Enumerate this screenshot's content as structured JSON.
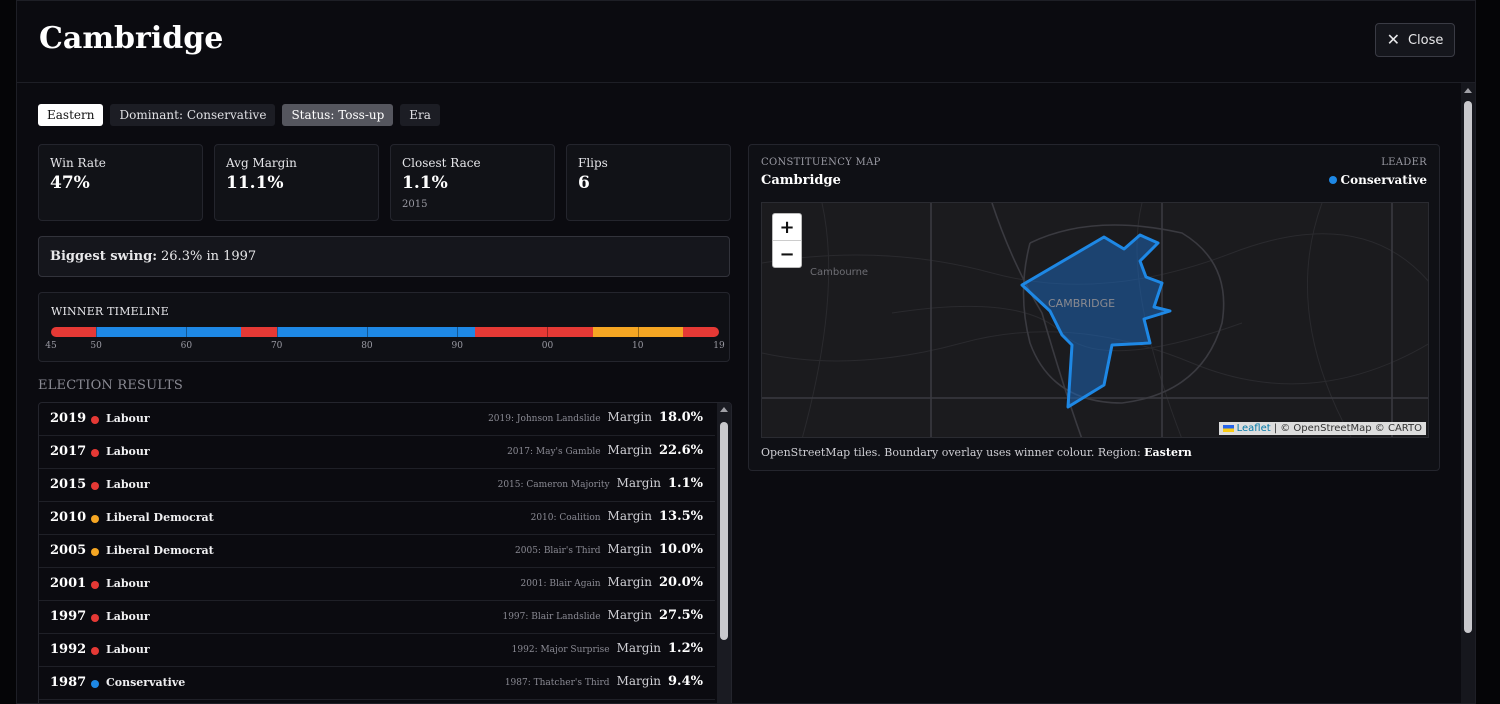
{
  "title": "Cambridge",
  "close_label": "Close",
  "badges": [
    "Eastern",
    "Dominant: Conservative",
    "Status: Toss-up",
    "Era"
  ],
  "stats": [
    {
      "label": "Win Rate",
      "value": "47%",
      "sub": ""
    },
    {
      "label": "Avg Margin",
      "value": "11.1%",
      "sub": ""
    },
    {
      "label": "Closest Race",
      "value": "1.1%",
      "sub": "2015"
    },
    {
      "label": "Flips",
      "value": "6",
      "sub": ""
    }
  ],
  "swing": {
    "label": "Biggest swing:",
    "text": "26.3% in 1997"
  },
  "timeline": {
    "label": "WINNER TIMELINE",
    "ticks": [
      "45",
      "50",
      "60",
      "70",
      "80",
      "90",
      "00",
      "10",
      "19"
    ],
    "segments": [
      {
        "from": 1945,
        "to": 1950,
        "party": "Labour"
      },
      {
        "from": 1950,
        "to": 1966,
        "party": "Conservative"
      },
      {
        "from": 1966,
        "to": 1970,
        "party": "Labour"
      },
      {
        "from": 1970,
        "to": 1992,
        "party": "Conservative"
      },
      {
        "from": 1992,
        "to": 2005,
        "party": "Labour"
      },
      {
        "from": 2005,
        "to": 2015,
        "party": "Liberal Democrat"
      },
      {
        "from": 2015,
        "to": 2019,
        "party": "Labour"
      }
    ]
  },
  "party_colors": {
    "Labour": "#e53935",
    "Conservative": "#1e88e5",
    "Liberal Democrat": "#f5a623"
  },
  "results_title": "ELECTION RESULTS",
  "margin_label": "Margin",
  "results": [
    {
      "year": "2019",
      "party": "Labour",
      "era": "2019: Johnson Landslide",
      "margin": "18.0%",
      "color": "#e53935"
    },
    {
      "year": "2017",
      "party": "Labour",
      "era": "2017: May's Gamble",
      "margin": "22.6%",
      "color": "#e53935"
    },
    {
      "year": "2015",
      "party": "Labour",
      "era": "2015: Cameron Majority",
      "margin": "1.1%",
      "color": "#e53935"
    },
    {
      "year": "2010",
      "party": "Liberal Democrat",
      "era": "2010: Coalition",
      "margin": "13.5%",
      "color": "#f5a623"
    },
    {
      "year": "2005",
      "party": "Liberal Democrat",
      "era": "2005: Blair's Third",
      "margin": "10.0%",
      "color": "#f5a623"
    },
    {
      "year": "2001",
      "party": "Labour",
      "era": "2001: Blair Again",
      "margin": "20.0%",
      "color": "#e53935"
    },
    {
      "year": "1997",
      "party": "Labour",
      "era": "1997: Blair Landslide",
      "margin": "27.5%",
      "color": "#e53935"
    },
    {
      "year": "1992",
      "party": "Labour",
      "era": "1992: Major Surprise",
      "margin": "1.2%",
      "color": "#e53935"
    },
    {
      "year": "1987",
      "party": "Conservative",
      "era": "1987: Thatcher's Third",
      "margin": "9.4%",
      "color": "#1e88e5"
    }
  ],
  "map": {
    "kicker": "CONSTITUENCY MAP",
    "name": "Cambridge",
    "leader_kicker": "LEADER",
    "leader": "Conservative",
    "place_cambourne": "Cambourne",
    "place_cambridge": "CAMBRIDGE",
    "zoom_in": "+",
    "zoom_out": "−",
    "attrib_leaflet": "Leaflet",
    "attrib_rest": "| © OpenStreetMap © CARTO",
    "caption": "OpenStreetMap tiles. Boundary overlay uses winner colour. Region:",
    "caption_region": "Eastern"
  }
}
